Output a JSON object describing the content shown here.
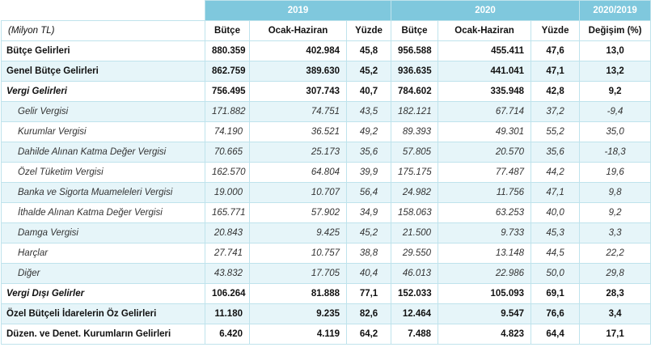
{
  "header": {
    "years": [
      "2019",
      "2020",
      "2020/2019"
    ],
    "unit": "(Milyon TL)",
    "cols": [
      "Bütçe",
      "Ocak-Haziran",
      "Yüzde",
      "Bütçe",
      "Ocak-Haziran",
      "Yüzde",
      "Değişim (%)"
    ]
  },
  "rows": [
    {
      "label": "Bütçe Gelirleri",
      "v": [
        "880.359",
        "402.984",
        "45,8",
        "956.588",
        "455.411",
        "47,6",
        "13,0"
      ]
    },
    {
      "label": "Genel Bütçe Gelirleri",
      "v": [
        "862.759",
        "389.630",
        "45,2",
        "936.635",
        "441.041",
        "47,1",
        "13,2"
      ]
    },
    {
      "label": "Vergi Gelirleri",
      "v": [
        "756.495",
        "307.743",
        "40,7",
        "784.602",
        "335.948",
        "42,8",
        "9,2"
      ]
    },
    {
      "label": "Gelir Vergisi",
      "v": [
        "171.882",
        "74.751",
        "43,5",
        "182.121",
        "67.714",
        "37,2",
        "-9,4"
      ]
    },
    {
      "label": "Kurumlar Vergisi",
      "v": [
        "74.190",
        "36.521",
        "49,2",
        "89.393",
        "49.301",
        "55,2",
        "35,0"
      ]
    },
    {
      "label": "Dahilde Alınan Katma Değer Vergisi",
      "v": [
        "70.665",
        "25.173",
        "35,6",
        "57.805",
        "20.570",
        "35,6",
        "-18,3"
      ]
    },
    {
      "label": "Özel Tüketim Vergisi",
      "v": [
        "162.570",
        "64.804",
        "39,9",
        "175.175",
        "77.487",
        "44,2",
        "19,6"
      ]
    },
    {
      "label": "Banka ve Sigorta Muameleleri Vergisi",
      "v": [
        "19.000",
        "10.707",
        "56,4",
        "24.982",
        "11.756",
        "47,1",
        "9,8"
      ]
    },
    {
      "label": "İthalde Alınan Katma Değer Vergisi",
      "v": [
        "165.771",
        "57.902",
        "34,9",
        "158.063",
        "63.253",
        "40,0",
        "9,2"
      ]
    },
    {
      "label": "Damga Vergisi",
      "v": [
        "20.843",
        "9.425",
        "45,2",
        "21.500",
        "9.733",
        "45,3",
        "3,3"
      ]
    },
    {
      "label": "Harçlar",
      "v": [
        "27.741",
        "10.757",
        "38,8",
        "29.550",
        "13.148",
        "44,5",
        "22,2"
      ]
    },
    {
      "label": "Diğer",
      "v": [
        "43.832",
        "17.705",
        "40,4",
        "46.013",
        "22.986",
        "50,0",
        "29,8"
      ]
    },
    {
      "label": "Vergi Dışı Gelirler",
      "v": [
        "106.264",
        "81.888",
        "77,1",
        "152.033",
        "105.093",
        "69,1",
        "28,3"
      ]
    },
    {
      "label": "Özel Bütçeli İdarelerin Öz Gelirleri",
      "v": [
        "11.180",
        "9.235",
        "82,6",
        "12.464",
        "9.547",
        "76,6",
        "3,4"
      ]
    },
    {
      "label": "Düzen. ve Denet. Kurumların Gelirleri",
      "v": [
        "6.420",
        "4.119",
        "64,2",
        "7.488",
        "4.823",
        "64,4",
        "17,1"
      ]
    }
  ]
}
